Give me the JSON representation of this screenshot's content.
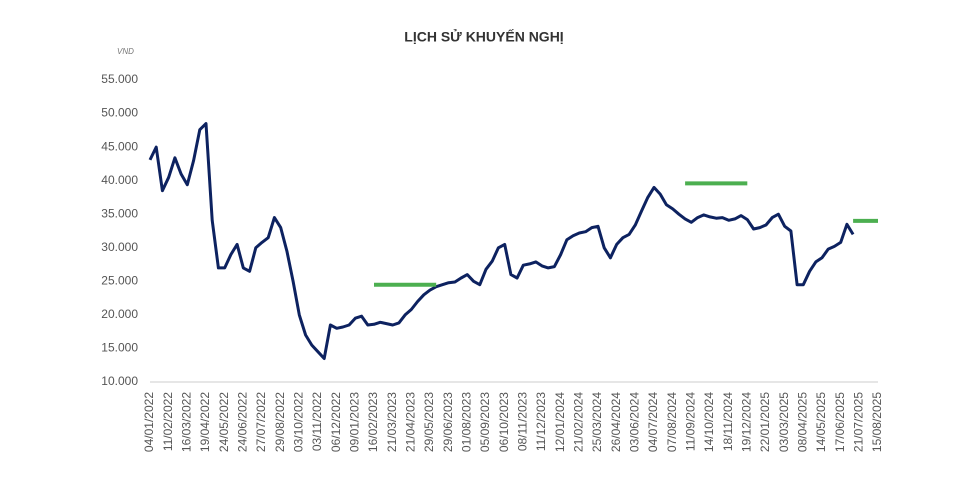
{
  "chart_data": {
    "type": "line",
    "title": "LỊCH SỬ KHUYẾN NGHỊ",
    "y_axis_label": "VND",
    "categories": [
      "04/01/2022",
      null,
      null,
      "11/02/2022",
      null,
      null,
      "16/03/2022",
      null,
      null,
      "19/04/2022",
      null,
      null,
      "24/05/2022",
      null,
      null,
      "24/06/2022",
      null,
      null,
      "27/07/2022",
      null,
      null,
      "29/08/2022",
      null,
      null,
      "03/10/2022",
      null,
      null,
      "03/11/2022",
      null,
      null,
      "06/12/2022",
      null,
      null,
      "09/01/2023",
      null,
      null,
      "16/02/2023",
      null,
      null,
      "21/03/2023",
      null,
      null,
      "21/04/2023",
      null,
      null,
      "29/05/2023",
      null,
      null,
      "29/06/2023",
      null,
      null,
      "01/08/2023",
      null,
      null,
      "05/09/2023",
      null,
      null,
      "06/10/2023",
      null,
      null,
      "08/11/2023",
      null,
      null,
      "11/12/2023",
      null,
      null,
      "12/01/2024",
      null,
      null,
      "21/02/2024",
      null,
      null,
      "25/03/2024",
      null,
      null,
      "26/04/2024",
      null,
      null,
      "03/06/2024",
      null,
      null,
      "04/07/2024",
      null,
      null,
      "07/08/2024",
      null,
      null,
      "11/09/2024",
      null,
      null,
      "14/10/2024",
      null,
      null,
      "18/11/2024",
      null,
      null,
      "19/12/2024",
      null,
      null,
      "22/01/2025",
      null,
      null,
      "03/03/2025",
      null,
      null,
      "08/04/2025",
      null,
      null,
      "14/05/2025",
      null,
      null,
      "17/06/2025",
      null,
      null,
      "21/07/2025",
      null,
      null,
      "15/08/2025"
    ],
    "series": [
      {
        "color": "#0d2260",
        "width": 3,
        "values": [
          43100,
          45000,
          38500,
          40500,
          43400,
          41000,
          39400,
          43000,
          47600,
          48500,
          34100,
          27000,
          27000,
          29000,
          30500,
          27000,
          26500,
          30000,
          30800,
          31500,
          34500,
          33000,
          29500,
          25000,
          20000,
          17000,
          15500,
          14500,
          13500,
          18500,
          18000,
          18200,
          18500,
          19500,
          19800,
          18500,
          18600,
          18900,
          18700,
          18500,
          18800,
          20000,
          20800,
          22000,
          23000,
          23700,
          24200,
          24500,
          24800,
          24900,
          25500,
          26000,
          25000,
          24500,
          26800,
          28000,
          30000,
          30500,
          26000,
          25500,
          27400,
          27600,
          27900,
          27300,
          27000,
          27200,
          29000,
          31200,
          31800,
          32200,
          32400,
          33000,
          33200,
          30000,
          28500,
          30500,
          31500,
          32000,
          33400,
          35500,
          37500,
          39000,
          38000,
          36400,
          35800,
          35000,
          34300,
          33800,
          34500,
          34900,
          34600,
          34400,
          34500,
          34100,
          34300,
          34800,
          34200,
          32800,
          33000,
          33400,
          34500,
          35000,
          33200,
          32500,
          24500,
          24500,
          26500,
          27900,
          28500,
          29800,
          30200,
          30800,
          33500,
          32000,
          null,
          null,
          null,
          null
        ]
      },
      {
        "color": "#4caf50",
        "width": 4,
        "values": [
          null,
          null,
          null,
          null,
          null,
          null,
          null,
          null,
          null,
          null,
          null,
          null,
          null,
          null,
          null,
          null,
          null,
          null,
          null,
          null,
          null,
          null,
          null,
          null,
          null,
          null,
          null,
          null,
          null,
          null,
          null,
          null,
          null,
          null,
          null,
          null,
          24500,
          24500,
          24500,
          24500,
          24500,
          24500,
          24500,
          24500,
          24500,
          24500,
          24500,
          null,
          null,
          null,
          null,
          null,
          null,
          null,
          null,
          null,
          null,
          null,
          null,
          null,
          null,
          null,
          null,
          null,
          null,
          null,
          null,
          null,
          null,
          null,
          null,
          null,
          null,
          null,
          null,
          null,
          null,
          null,
          null,
          null,
          null,
          null,
          null,
          null,
          null,
          null,
          39600,
          39600,
          39600,
          39600,
          39600,
          39600,
          39600,
          39600,
          39600,
          39600,
          39600,
          null,
          null,
          null,
          null,
          null,
          null,
          null,
          null,
          null,
          null,
          null,
          null,
          null,
          null,
          null,
          null,
          34000,
          34000,
          34000,
          34000,
          34000
        ]
      }
    ],
    "ylim": [
      10000,
      55000
    ],
    "yticks": [
      {
        "value": 10000,
        "label": "10.000"
      },
      {
        "value": 15000,
        "label": "15.000"
      },
      {
        "value": 20000,
        "label": "20.000"
      },
      {
        "value": 25000,
        "label": "25.000"
      },
      {
        "value": 30000,
        "label": "30.000"
      },
      {
        "value": 35000,
        "label": "35.000"
      },
      {
        "value": 40000,
        "label": "40.000"
      },
      {
        "value": 45000,
        "label": "45.000"
      },
      {
        "value": 50000,
        "label": "50.000"
      },
      {
        "value": 55000,
        "label": "55.000"
      }
    ],
    "grid": false
  }
}
